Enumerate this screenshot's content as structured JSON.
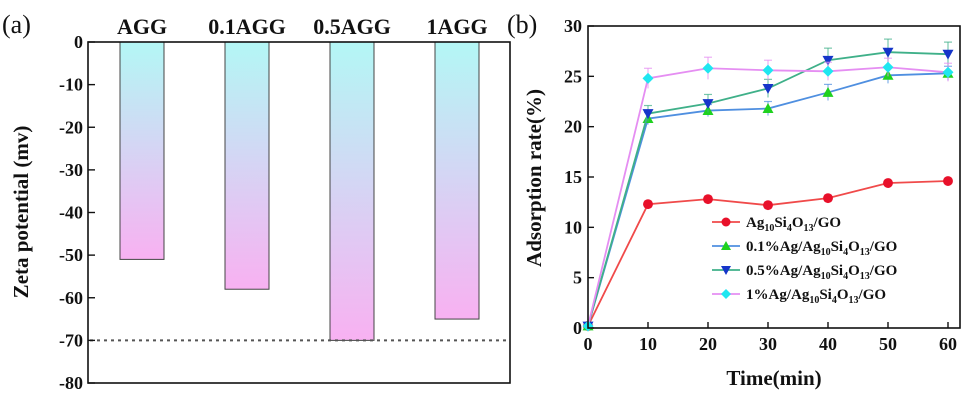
{
  "chart_data": [
    {
      "type": "bar",
      "panel_label": "(a)",
      "categories": [
        "AGG",
        "0.1AGG",
        "0.5AGG",
        "1AGG"
      ],
      "values": [
        -51,
        -58,
        -70,
        -65
      ],
      "ylabel": "Zeta potential (mv)",
      "ylim": [
        -80,
        0
      ],
      "yticks": [
        "0",
        "-10",
        "-20",
        "-30",
        "-40",
        "-50",
        "-60",
        "-70",
        "-80"
      ],
      "reference_line": -70,
      "bar_gradient": [
        "#b3f7f5",
        "#f8b1f2"
      ],
      "grid": false
    },
    {
      "type": "line",
      "panel_label": "(b)",
      "xlabel": "Time(min)",
      "ylabel": "Adsorption rate(%)",
      "xlim": [
        0,
        62
      ],
      "ylim": [
        0,
        30
      ],
      "xticks": [
        "0",
        "10",
        "20",
        "30",
        "40",
        "50",
        "60"
      ],
      "yticks": [
        "0",
        "5",
        "10",
        "15",
        "20",
        "25",
        "30"
      ],
      "x": [
        0,
        10,
        20,
        30,
        40,
        50,
        60
      ],
      "legend_position": "bottom-right",
      "grid": false,
      "series": [
        {
          "legend": {
            "pre": "Ag",
            "sub1": "10",
            "mid1": "Si",
            "sub2": "4",
            "mid2": "O",
            "sub3": "13",
            "post": "/GO"
          },
          "values": [
            0.2,
            12.3,
            12.8,
            12.2,
            12.9,
            14.4,
            14.6
          ],
          "errors": [
            0,
            0,
            0,
            0,
            0,
            0,
            0
          ],
          "color": "#f04a4a",
          "marker": "circle"
        },
        {
          "legend": {
            "pre": "0.1%Ag/Ag",
            "sub1": "10",
            "mid1": "Si",
            "sub2": "4",
            "mid2": "O",
            "sub3": "13",
            "post": "/GO"
          },
          "values": [
            0.2,
            20.8,
            21.6,
            21.8,
            23.4,
            25.1,
            25.3
          ],
          "errors": [
            0,
            0.6,
            0.6,
            0.7,
            0.8,
            0.8,
            0.7
          ],
          "color": "#4f8fe0",
          "marker": "triangle-up"
        },
        {
          "legend": {
            "pre": "0.5%Ag/Ag",
            "sub1": "10",
            "mid1": "Si",
            "sub2": "4",
            "mid2": "O",
            "sub3": "13",
            "post": "/GO"
          },
          "values": [
            0.2,
            21.3,
            22.3,
            23.8,
            26.6,
            27.4,
            27.2
          ],
          "errors": [
            0,
            0.8,
            0.9,
            0.9,
            1.2,
            1.3,
            1.2
          ],
          "color": "#3fb089",
          "marker": "triangle-down"
        },
        {
          "legend": {
            "pre": "1%Ag/Ag",
            "sub1": "10",
            "mid1": "Si",
            "sub2": "4",
            "mid2": "O",
            "sub3": "13",
            "post": "/GO"
          },
          "values": [
            0.2,
            24.8,
            25.8,
            25.6,
            25.5,
            25.9,
            25.4
          ],
          "errors": [
            0,
            1.0,
            1.1,
            1.0,
            0.9,
            0.9,
            0.9
          ],
          "color": "#e58ef2",
          "marker": "diamond"
        }
      ],
      "marker_colors": {
        "circle": "#e8102a",
        "triangle-up": "#1fd11f",
        "triangle-down": "#1535c9",
        "diamond": "#1fe6f0"
      }
    }
  ]
}
